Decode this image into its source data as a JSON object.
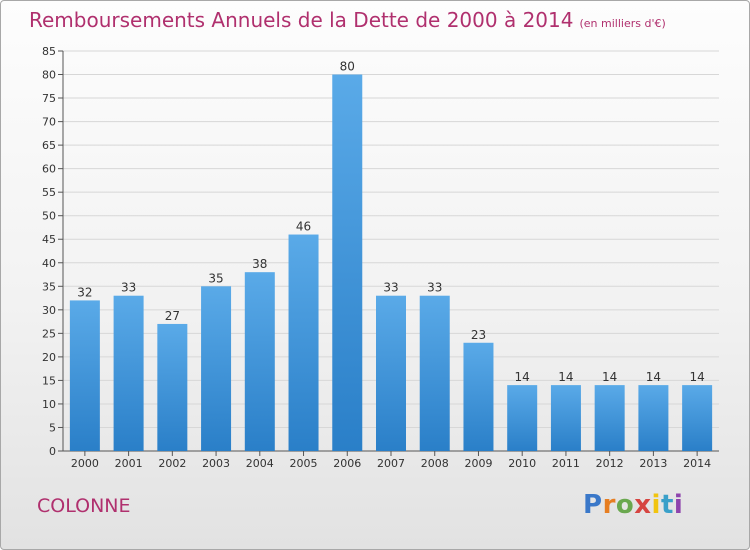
{
  "header": {
    "title": "Remboursements Annuels de la Dette de 2000 à 2014",
    "unit": "(en milliers d'€)"
  },
  "footer": {
    "commune": "COLONNE",
    "logo_letters": [
      "P",
      "r",
      "o",
      "x",
      "i",
      "t",
      "i"
    ],
    "logo_colors": [
      "#3a78c9",
      "#e67e22",
      "#6aa84f",
      "#d64541",
      "#f1c40f",
      "#3aa0c9",
      "#8e44ad"
    ]
  },
  "colors": {
    "bar_top": "#5aaae8",
    "bar_bottom": "#2a7fc8",
    "accent": "#b0306e"
  },
  "chart_data": {
    "type": "bar",
    "categories": [
      "2000",
      "2001",
      "2002",
      "2003",
      "2004",
      "2005",
      "2006",
      "2007",
      "2008",
      "2009",
      "2010",
      "2011",
      "2012",
      "2013",
      "2014"
    ],
    "values": [
      32,
      33,
      27,
      35,
      38,
      46,
      80,
      33,
      33,
      23,
      14,
      14,
      14,
      14,
      14
    ],
    "ylim": [
      0,
      85
    ],
    "yticks": [
      0,
      5,
      10,
      15,
      20,
      25,
      30,
      35,
      40,
      45,
      50,
      55,
      60,
      65,
      70,
      75,
      80,
      85
    ],
    "grid": true
  }
}
